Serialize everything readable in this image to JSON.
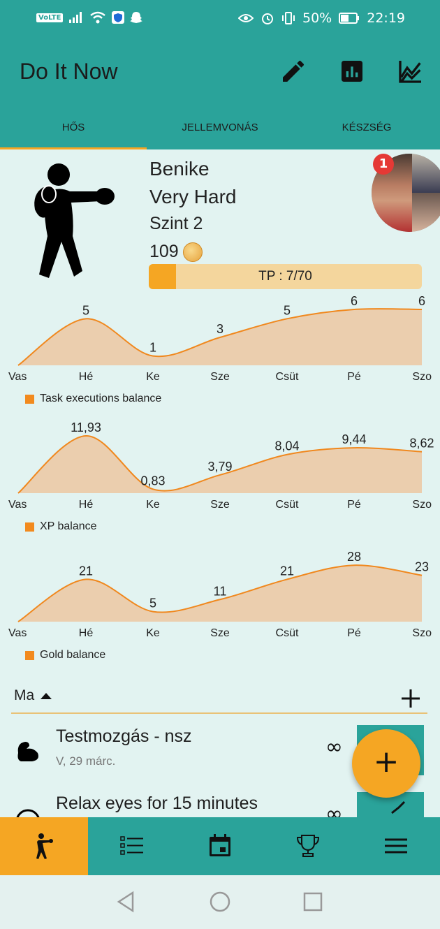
{
  "status": {
    "volte": "VoLTE",
    "battery": "50%",
    "time": "22:19"
  },
  "app": {
    "title": "Do It Now"
  },
  "tabs": [
    "HŐS",
    "JELLEMVONÁS",
    "KÉSZSÉG"
  ],
  "hero": {
    "name": "Benike",
    "difficulty": "Very Hard",
    "level": "Szint 2",
    "gold": "109",
    "tp_label": "TP : 7/70",
    "tp_fraction": 0.1,
    "friend_badge": "1"
  },
  "chart_data": [
    {
      "type": "area",
      "categories": [
        "Vas",
        "Hé",
        "Ke",
        "Sze",
        "Csüt",
        "Pé",
        "Szo"
      ],
      "values": [
        0,
        5,
        1,
        3,
        5,
        6,
        6
      ],
      "labels": [
        "",
        "5",
        "1",
        "3",
        "5",
        "6",
        "6"
      ],
      "ylim": [
        0,
        6.6
      ],
      "legend": "Task executions balance"
    },
    {
      "type": "area",
      "categories": [
        "Vas",
        "Hé",
        "Ke",
        "Sze",
        "Csüt",
        "Pé",
        "Szo"
      ],
      "values": [
        0,
        11.93,
        0.83,
        3.79,
        8.04,
        9.44,
        8.62
      ],
      "labels": [
        "",
        "11,93",
        "0,83",
        "3,79",
        "8,04",
        "9,44",
        "8,62"
      ],
      "ylim": [
        0,
        12.8
      ],
      "legend": "XP balance"
    },
    {
      "type": "area",
      "categories": [
        "Vas",
        "Hé",
        "Ke",
        "Sze",
        "Csüt",
        "Pé",
        "Szo"
      ],
      "values": [
        0,
        21,
        5,
        11,
        21,
        28,
        23
      ],
      "labels": [
        "",
        "21",
        "5",
        "11",
        "21",
        "28",
        "23"
      ],
      "ylim": [
        0,
        30.5
      ],
      "legend": "Gold balance"
    }
  ],
  "today": {
    "label": "Ma"
  },
  "tasks": [
    {
      "name": "Testmozgás - nsz",
      "date": "V, 29 márc.",
      "repeat": "∞"
    },
    {
      "name": "Relax eyes for 15 minutes",
      "date": "",
      "repeat": "∞"
    }
  ],
  "fab": {
    "label": "+"
  },
  "colors": {
    "primary": "#2aa39a",
    "accent": "#f5a623",
    "chart_line": "#f0881e",
    "chart_fill": "#eccaa6"
  }
}
